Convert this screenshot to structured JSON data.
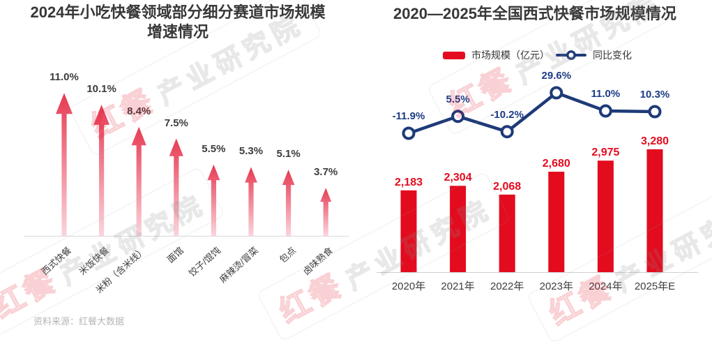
{
  "page": {
    "background": "#ffffff",
    "source_note": "资料来源：红餐大数据",
    "watermark": {
      "brand": "红餐",
      "suffix": "产业研究院"
    }
  },
  "chart_data": [
    {
      "type": "bar",
      "variant": "up-arrows",
      "title": "2024年小吃快餐领域部分细分赛道市场规模增速情况",
      "title_lines": [
        "2024年小吃快餐领域部分细分赛道市场规模",
        "增速情况"
      ],
      "categories": [
        "西式快餐",
        "米饭快餐",
        "米粉（含米线）",
        "面馆",
        "饺子/馄饨",
        "麻辣烫/冒菜",
        "包点",
        "卤味熟食"
      ],
      "values": [
        11.0,
        10.1,
        8.4,
        7.5,
        5.5,
        5.3,
        5.1,
        3.7
      ],
      "labels": [
        "11.0%",
        "10.1%",
        "8.4%",
        "7.5%",
        "5.5%",
        "5.3%",
        "5.1%",
        "3.7%"
      ],
      "unit": "%",
      "ylim": [
        0,
        12
      ],
      "grid": false,
      "legend": false,
      "colors": {
        "arrow_top": "#e73a52",
        "arrow_bottom": "#fbd5dd",
        "axis": "#d9d9d9",
        "value_label": "#3c3c3c"
      }
    },
    {
      "type": "combo",
      "title": "2020—2025年全国西式快餐市场规模情况",
      "categories": [
        "2020年",
        "2021年",
        "2022年",
        "2023年",
        "2024年",
        "2025年E"
      ],
      "legend_position": "top",
      "grid": false,
      "series": [
        {
          "name": "市场规模（亿元）",
          "type": "bar",
          "values": [
            2183,
            2304,
            2068,
            2680,
            2975,
            3280
          ],
          "labels": [
            "2,183",
            "2,304",
            "2,068",
            "2,680",
            "2,975",
            "3,280"
          ],
          "color": "#e30b1e",
          "ylim": [
            0,
            3600
          ]
        },
        {
          "name": "同比变化",
          "type": "line",
          "values": [
            -11.9,
            5.5,
            -10.2,
            29.6,
            11.0,
            10.3
          ],
          "labels": [
            "-11.9%",
            "5.5%",
            "-10.2%",
            "29.6%",
            "11.0%",
            "10.3%"
          ],
          "color": "#1e3a78",
          "label_color": "#1d3c86",
          "marker": "circle"
        }
      ],
      "colors": {
        "axis": "#cfcfcf"
      }
    }
  ]
}
